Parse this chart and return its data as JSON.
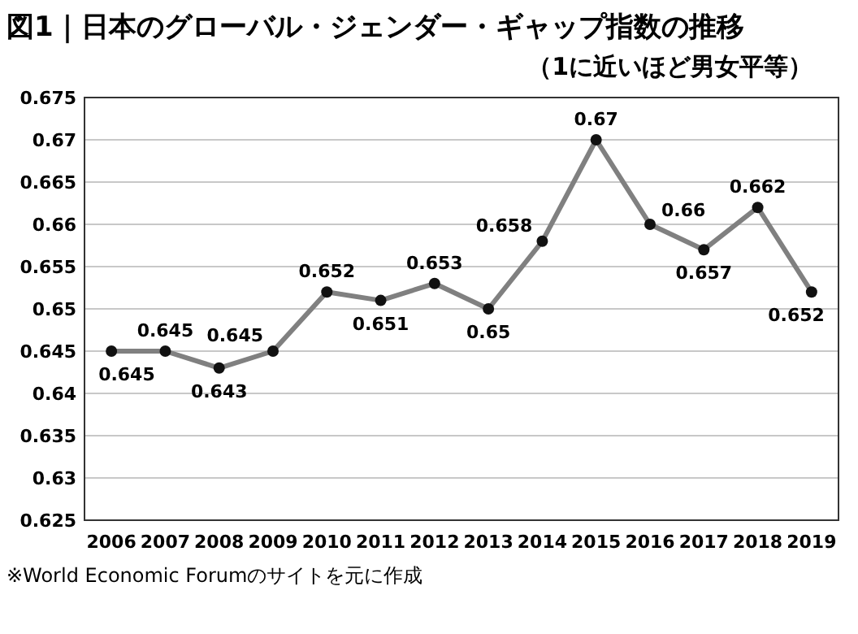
{
  "chart_data": {
    "type": "line",
    "title": "図1｜日本のグローバル・ジェンダー・ギャップ指数の推移",
    "subtitle": "（1に近いほど男女平等）",
    "categories": [
      "2006",
      "2007",
      "2008",
      "2009",
      "2010",
      "2011",
      "2012",
      "2013",
      "2014",
      "2015",
      "2016",
      "2017",
      "2018",
      "2019"
    ],
    "series": [
      {
        "color": "#808080",
        "values": [
          0.645,
          0.645,
          0.643,
          0.645,
          0.652,
          0.651,
          0.653,
          0.65,
          0.658,
          0.67,
          0.66,
          0.657,
          0.662,
          0.652
        ]
      }
    ],
    "ylim": [
      0.625,
      0.675
    ],
    "yticks": [
      0.625,
      0.63,
      0.635,
      0.64,
      0.645,
      0.65,
      0.655,
      0.66,
      0.665,
      0.67,
      0.675
    ],
    "grid": "y",
    "marker": "circle",
    "line_style": "solid",
    "data_labels": true,
    "annotations": [
      "※World Economic Forumのサイトを元に作成"
    ]
  }
}
